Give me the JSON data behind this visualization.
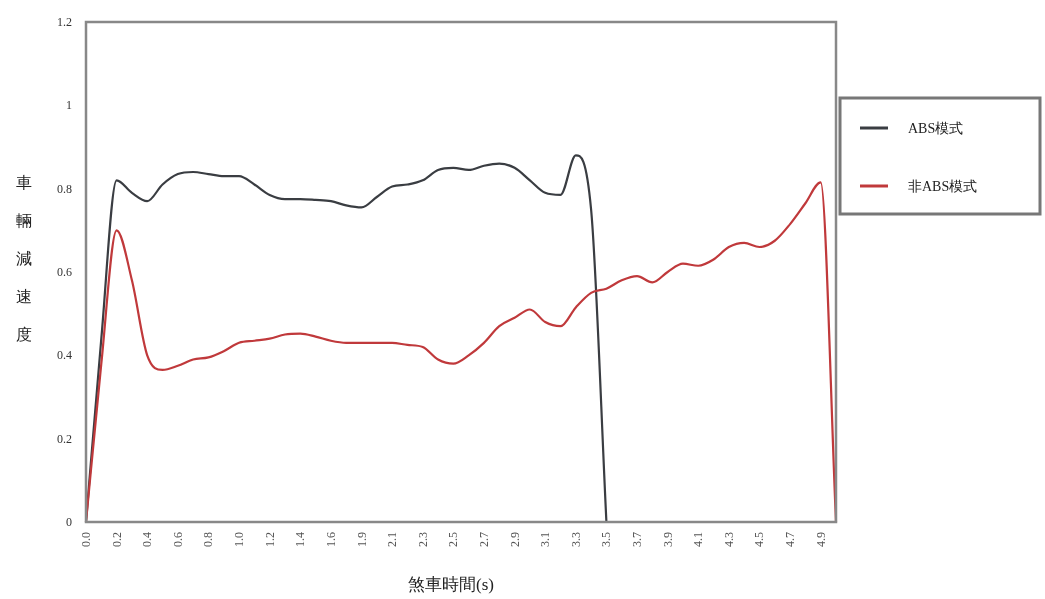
{
  "chart_data": {
    "type": "line",
    "xlabel": "煞車時間(s)",
    "ylabel": "車輛減速度",
    "categories": [
      "0.0",
      null,
      "0.2",
      null,
      "0.4",
      null,
      "0.6",
      null,
      "0.8",
      null,
      "1.0",
      null,
      "1.2",
      null,
      "1.4",
      null,
      "1.6",
      null,
      "1.9",
      null,
      "2.1",
      null,
      "2.3",
      null,
      "2.5",
      null,
      "2.7",
      null,
      "2.9",
      null,
      "3.1",
      null,
      "3.3",
      null,
      "3.5",
      null,
      "3.7",
      null,
      "3.9",
      null,
      "4.1",
      null,
      "4.3",
      null,
      "4.5",
      null,
      "4.7",
      null,
      "4.9",
      null
    ],
    "series": [
      {
        "name": "ABS模式",
        "color": "#3a3d42",
        "values": [
          0,
          0.44,
          0.82,
          0.79,
          0.77,
          0.81,
          0.835,
          0.84,
          0.835,
          0.83,
          0.83,
          0.81,
          0.785,
          0.775,
          0.775,
          0.773,
          0.77,
          0.76,
          0.755,
          0.78,
          0.805,
          0.81,
          0.82,
          0.845,
          0.85,
          0.845,
          0.855,
          0.86,
          0.85,
          0.82,
          0.79,
          0.785,
          0.88,
          0.75,
          0,
          null,
          null,
          null,
          null,
          null,
          null,
          null,
          null,
          null,
          null,
          null,
          null,
          null,
          null,
          null
        ]
      },
      {
        "name": "非ABS模式",
        "color": "#c0393b",
        "values": [
          0,
          0.38,
          0.7,
          0.58,
          0.4,
          0.365,
          0.375,
          0.39,
          0.395,
          0.41,
          0.43,
          0.435,
          0.44,
          0.45,
          0.452,
          0.445,
          0.435,
          0.43,
          0.43,
          0.43,
          0.43,
          0.425,
          0.42,
          0.39,
          0.38,
          0.4,
          0.43,
          0.47,
          0.49,
          0.51,
          0.48,
          0.47,
          0.515,
          0.55,
          0.56,
          0.58,
          0.59,
          0.575,
          0.6,
          0.62,
          0.615,
          0.63,
          0.66,
          0.67,
          0.66,
          0.675,
          0.715,
          0.765,
          0.815,
          0
        ]
      }
    ],
    "ylim": [
      0,
      1.2
    ],
    "yticks": [
      0,
      0.2,
      0.4,
      0.6,
      0.8,
      1,
      1.2
    ],
    "legend": "right",
    "grid": false
  }
}
